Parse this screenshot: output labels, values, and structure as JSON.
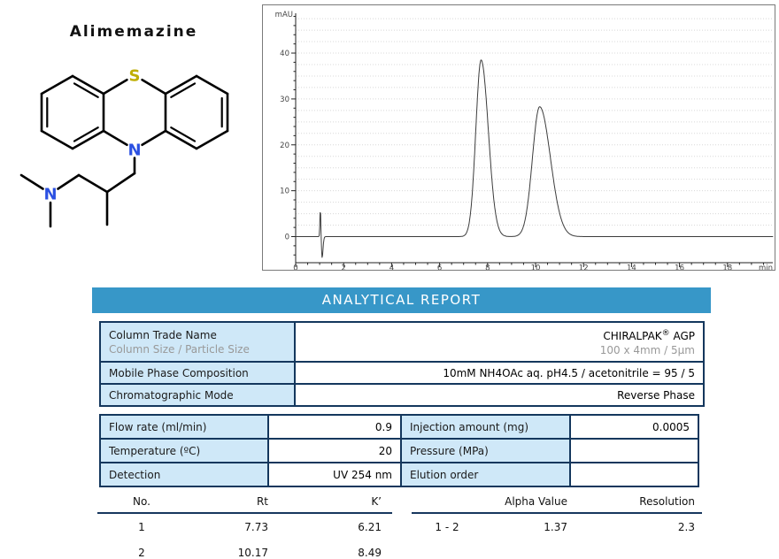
{
  "compound": {
    "name": "Alimemazine",
    "atom_s": "S",
    "atom_n_ring": "N",
    "atom_n_amine": "N"
  },
  "report_banner": {
    "title": "ANALYTICAL REPORT",
    "bg_color": "#3797c8"
  },
  "column_info": {
    "row1": {
      "label_line1": "Column Trade Name",
      "label_line2": "Column Size / Particle Size",
      "value_name": "CHIRALPAK",
      "value_reg": "®",
      "value_suffix": " AGP",
      "value_line2": "100 x 4mm / 5µm"
    },
    "row2": {
      "label": "Mobile Phase Composition",
      "value": "10mM NH4OAc aq. pH4.5 / acetonitrile = 95 / 5"
    },
    "row3": {
      "label": "Chromatographic Mode",
      "value": "Reverse Phase"
    }
  },
  "conditions": {
    "rows": [
      {
        "label_left": "Flow rate (ml/min)",
        "value_left": "0.9",
        "label_right": "Injection amount (mg)",
        "value_right": "0.0005"
      },
      {
        "label_left": "Temperature (ºC)",
        "value_left": "20",
        "label_right": "Pressure (MPa)",
        "value_right": ""
      },
      {
        "label_left": "Detection",
        "value_left": "UV 254 nm",
        "label_right": "Elution order",
        "value_right": ""
      }
    ]
  },
  "results": {
    "peaks_table": {
      "headers": [
        "No.",
        "Rt",
        "K’"
      ],
      "rows": [
        [
          "1",
          "7.73",
          "6.21"
        ],
        [
          "2",
          "10.17",
          "8.49"
        ]
      ]
    },
    "separation_table": {
      "headers": [
        "",
        "Alpha Value",
        "Resolution"
      ],
      "rows": [
        [
          "1 - 2",
          "1.37",
          "2.3"
        ]
      ]
    }
  },
  "chart_data": {
    "type": "line",
    "title": "",
    "xlabel": "min",
    "ylabel": "mAU",
    "xlim": [
      0,
      19.9
    ],
    "ylim": [
      -5.7,
      48.7
    ],
    "xticks": [
      0,
      2,
      4,
      6,
      8,
      10,
      12,
      14,
      16,
      18
    ],
    "yticks": [
      0,
      10,
      20,
      30,
      40
    ],
    "x_minor_step": 0.5,
    "y_minor_step": 2,
    "grid_step": 2.5,
    "grid_on": true,
    "legend": "none",
    "baseline": 0,
    "series": [
      {
        "name": "UV 254 nm signal",
        "peaks": [
          {
            "name": "injection-disturbance-up",
            "center_min": 1.03,
            "height_mau": 6.0,
            "sigma_left": 0.02,
            "sigma_right": 0.018
          },
          {
            "name": "injection-disturbance-down",
            "center_min": 1.1,
            "height_mau": -4.6,
            "sigma_left": 0.022,
            "sigma_right": 0.04
          },
          {
            "name": "peak-1",
            "center_min": 7.73,
            "height_mau": 38.5,
            "sigma_left": 0.22,
            "sigma_right": 0.3
          },
          {
            "name": "peak-2",
            "center_min": 10.17,
            "height_mau": 28.3,
            "sigma_left": 0.3,
            "sigma_right": 0.45
          }
        ]
      }
    ],
    "line_color": "#3c3c3c",
    "grid_color": "#d8d8d8"
  }
}
